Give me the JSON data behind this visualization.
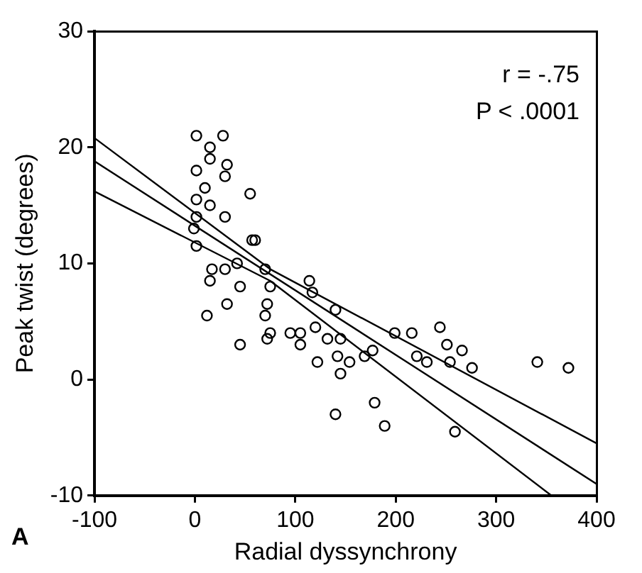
{
  "chart_data": {
    "type": "scatter",
    "xlabel": "Radial dyssynchrony",
    "ylabel": "Peak twist (degrees)",
    "xlim": [
      -100,
      400
    ],
    "xticks": [
      -100,
      0,
      100,
      200,
      300,
      400
    ],
    "ylim": [
      -10,
      30
    ],
    "yticks": [
      -10,
      0,
      10,
      20,
      30
    ],
    "grid": false,
    "legend": false,
    "annotations": [
      "r = -.75",
      "P < .0001",
      "A"
    ],
    "series": [
      {
        "type": "scatter",
        "color": "#000000",
        "marker": "circle",
        "x": [
          1.5,
          28,
          15,
          1.5,
          32,
          30,
          15,
          55,
          1.5,
          15,
          10,
          30,
          1.5,
          -1,
          1.5,
          57,
          60,
          17,
          30,
          42,
          15,
          45,
          32,
          12,
          45,
          70,
          75,
          72,
          70,
          75,
          72,
          95,
          105,
          105,
          114,
          117,
          120,
          132,
          140,
          145,
          122,
          142,
          154,
          145,
          140,
          169,
          177,
          179,
          189,
          199,
          216,
          221,
          231,
          244,
          251,
          254,
          266,
          276,
          259,
          341,
          372
        ],
        "values": [
          21,
          21,
          20,
          18,
          18.5,
          17.5,
          19,
          16,
          15.5,
          15,
          16.5,
          14,
          14,
          13,
          11.5,
          12,
          12,
          9.5,
          9.5,
          10,
          8.5,
          8,
          6.5,
          5.5,
          3,
          9.5,
          8,
          6.5,
          5.5,
          4,
          3.5,
          4,
          4,
          3,
          8.5,
          7.5,
          4.5,
          3.5,
          6,
          3.5,
          1.5,
          2,
          1.5,
          0.5,
          -3,
          2,
          2.5,
          -2,
          -4,
          4,
          4,
          2,
          1.5,
          4.5,
          3,
          1.5,
          2.5,
          1,
          -4.5,
          1.5,
          1
        ]
      },
      {
        "type": "line",
        "color": "#000000",
        "marker": "none",
        "line_style": "solid",
        "x": [
          -100,
          400
        ],
        "values": [
          18.8,
          -9
        ]
      },
      {
        "type": "line",
        "color": "#000000",
        "marker": "none",
        "line_style": "solid",
        "x": [
          -100,
          75,
          400
        ],
        "values": [
          20.8,
          9.5,
          -5.5
        ]
      },
      {
        "type": "line",
        "color": "#000000",
        "marker": "none",
        "line_style": "solid",
        "x": [
          -100,
          75,
          355
        ],
        "values": [
          16.2,
          8.5,
          -10
        ]
      }
    ]
  }
}
